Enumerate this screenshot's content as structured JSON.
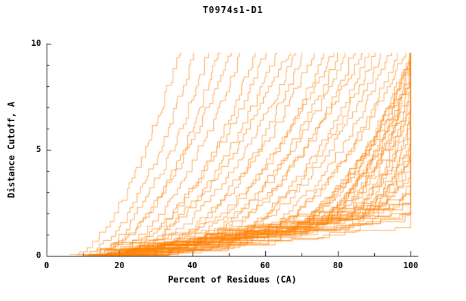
{
  "page": {
    "background": "#ffffff"
  },
  "chart_data": {
    "type": "line",
    "title": "T0974s1-D1",
    "xlabel": "Percent of Residues (CA)",
    "ylabel": "Distance Cutoff, A",
    "xlim": [
      0,
      102
    ],
    "ylim": [
      0,
      10
    ],
    "x_ticks": [
      0,
      20,
      40,
      60,
      80,
      100
    ],
    "x_minor_ticks": [
      10,
      30,
      50,
      70,
      90
    ],
    "y_ticks": [
      0,
      5,
      10
    ],
    "y_minor_ticks": [
      1,
      2,
      3,
      4,
      6,
      7,
      8,
      9
    ],
    "grid": false,
    "legend": "none",
    "line_color": "#ff8000",
    "axis_color": "#000000",
    "text_color": "#000000",
    "background": "#ffffff",
    "y_max_drawn": 9.58,
    "series_format": [
      "x_percent_at_cutoff_0",
      "x_percent_at_cutoff_9.5",
      "shape_exponent"
    ],
    "curve_model": "x(y) = x0 + (x_top - x0) * (y / 9.5) ^ shape ; clipped at x = 100 (continues vertically at 100%), y in [0, 9.58]; each series is one model's cumulative CA-distance curve (estimated from overlapping orange traces)",
    "series": [
      [
        6,
        36,
        0.55
      ],
      [
        7,
        40,
        0.5
      ],
      [
        9,
        44,
        0.52
      ],
      [
        10,
        47,
        0.48
      ],
      [
        11,
        50,
        0.55
      ],
      [
        12,
        53,
        0.5
      ],
      [
        13,
        57,
        0.45
      ],
      [
        12,
        60,
        0.5
      ],
      [
        14,
        63,
        0.48
      ],
      [
        15,
        66,
        0.52
      ],
      [
        14,
        68,
        0.45
      ],
      [
        16,
        70,
        0.42
      ],
      [
        17,
        73,
        0.45
      ],
      [
        18,
        76,
        0.4
      ],
      [
        16,
        78,
        0.44
      ],
      [
        19,
        80,
        0.4
      ],
      [
        20,
        82,
        0.42
      ],
      [
        21,
        84,
        0.38
      ],
      [
        18,
        86,
        0.4
      ],
      [
        22,
        88,
        0.36
      ],
      [
        23,
        90,
        0.38
      ],
      [
        20,
        92,
        0.35
      ],
      [
        24,
        94,
        0.34
      ],
      [
        25,
        96,
        0.32
      ],
      [
        22,
        98,
        0.33
      ],
      [
        26,
        100,
        0.3
      ],
      [
        24,
        100,
        0.28
      ],
      [
        27,
        102,
        0.3
      ],
      [
        25,
        104,
        0.27
      ],
      [
        28,
        106,
        0.28
      ],
      [
        12,
        100,
        0.22
      ],
      [
        14,
        101,
        0.2
      ],
      [
        10,
        102,
        0.21
      ],
      [
        13,
        103,
        0.19
      ],
      [
        11,
        104,
        0.2
      ],
      [
        15,
        105,
        0.18
      ],
      [
        12,
        106,
        0.17
      ],
      [
        9,
        107,
        0.18
      ],
      [
        14,
        108,
        0.16
      ],
      [
        10,
        109,
        0.17
      ],
      [
        13,
        110,
        0.15
      ],
      [
        11,
        112,
        0.16
      ],
      [
        8,
        114,
        0.14
      ],
      [
        12,
        116,
        0.15
      ],
      [
        13,
        100,
        0.24
      ],
      [
        16,
        102,
        0.22
      ],
      [
        11,
        105,
        0.19
      ],
      [
        15,
        108,
        0.18
      ],
      [
        9,
        110,
        0.16
      ],
      [
        17,
        112,
        0.2
      ],
      [
        16,
        120,
        0.24
      ],
      [
        18,
        126,
        0.25
      ],
      [
        15,
        132,
        0.24
      ],
      [
        20,
        138,
        0.26
      ],
      [
        17,
        144,
        0.25
      ],
      [
        14,
        150,
        0.24
      ],
      [
        19,
        156,
        0.26
      ],
      [
        16,
        162,
        0.25
      ],
      [
        21,
        168,
        0.27
      ],
      [
        18,
        175,
        0.26
      ]
    ]
  }
}
